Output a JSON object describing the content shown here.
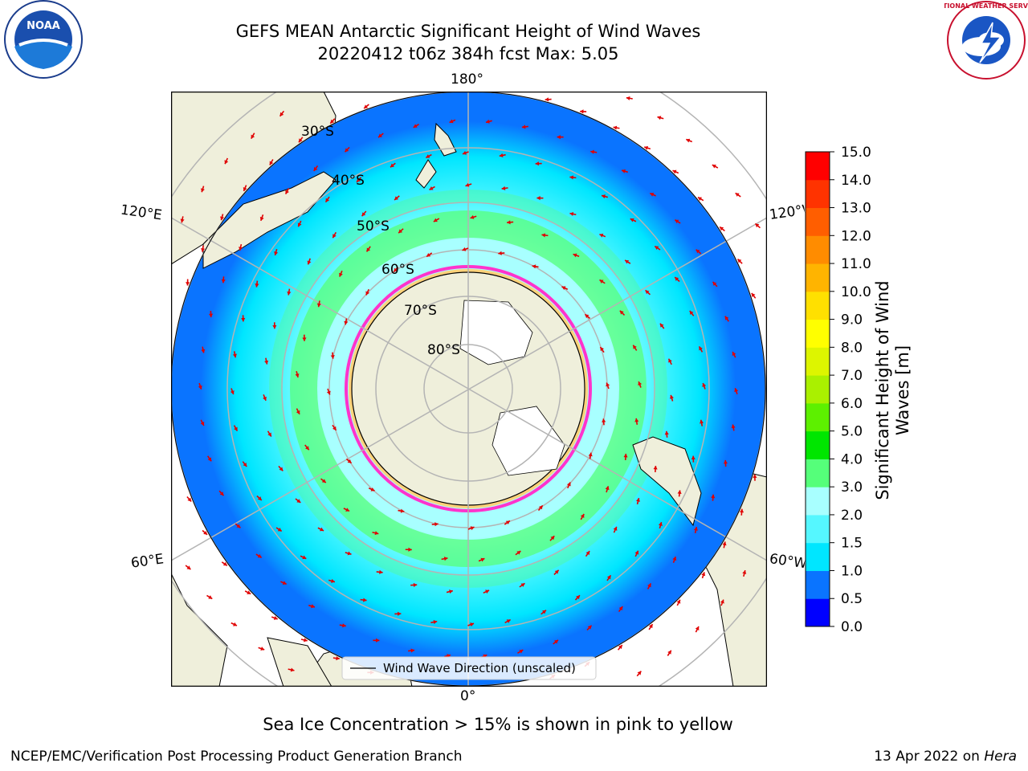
{
  "title": {
    "line1": "GEFS MEAN Antarctic Significant Height of Wind Waves",
    "line2": "20220412 t06z 384h fcst   Max: 5.05"
  },
  "map": {
    "longitude_labels": {
      "top": "180°",
      "bottom": "0°",
      "left_upper": "120°E",
      "left_lower": "60°E",
      "right_upper": "120°W",
      "right_lower": "60°W"
    },
    "latitude_labels": [
      "30°S",
      "40°S",
      "50°S",
      "60°S",
      "70°S",
      "80°S"
    ],
    "legend_label": "Wind Wave Direction (unscaled)"
  },
  "colorbar": {
    "label_line1": "Significant Height of Wind",
    "label_line2": "Waves [m]",
    "ticks": [
      "0.0",
      "0.5",
      "1.0",
      "1.5",
      "2.0",
      "3.0",
      "4.0",
      "5.0",
      "6.0",
      "7.0",
      "8.0",
      "9.0",
      "10.0",
      "11.0",
      "12.0",
      "13.0",
      "14.0",
      "15.0"
    ],
    "colors": [
      "#0000ff",
      "#0a74ff",
      "#00e6ff",
      "#55f7ff",
      "#a8ffff",
      "#55ff7a",
      "#00e600",
      "#5df000",
      "#aaf000",
      "#ddf500",
      "#ffff00",
      "#ffe000",
      "#ffb400",
      "#ff8c00",
      "#ff5e00",
      "#ff3300",
      "#ff0000"
    ]
  },
  "note": "Sea Ice Concentration > 15% is shown in pink to yellow",
  "footer": {
    "left": "NCEP/EMC/Verification Post Processing Product Generation Branch",
    "right_prefix": "13 Apr 2022 on ",
    "right_host": "Hera"
  },
  "logos": {
    "left": "NOAA",
    "right": "NATIONAL WEATHER SERVICE"
  }
}
